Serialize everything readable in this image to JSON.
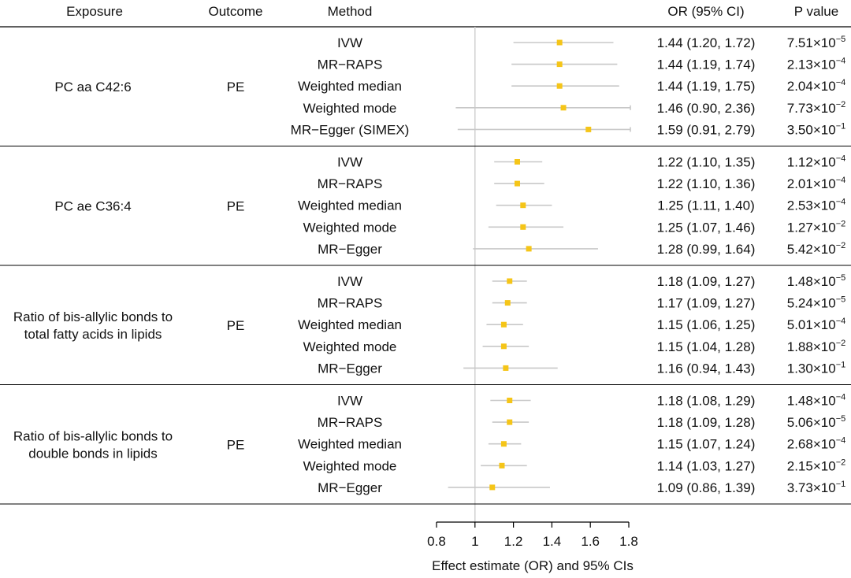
{
  "headers": {
    "exposure": "Exposure",
    "outcome": "Outcome",
    "method": "Method",
    "or_ci": "OR (95% CI)",
    "p_value": "P value"
  },
  "chart_data": {
    "type": "forest",
    "xlabel": "Effect estimate (OR) and 95% CIs",
    "xlim": [
      0.8,
      1.8
    ],
    "ticks": [
      0.8,
      1.0,
      1.2,
      1.4,
      1.6,
      1.8
    ],
    "tick_labels": [
      "0.8",
      "1",
      "1.2",
      "1.4",
      "1.6",
      "1.8"
    ],
    "reference_line": 1.0,
    "colors": {
      "point": "#f5c518",
      "ci_line": "#c8c8c8",
      "reference": "#d0d0d0",
      "border": "#000000"
    },
    "groups": [
      {
        "exposure": [
          "PC aa C42:6"
        ],
        "outcome": "PE",
        "rows": [
          {
            "method": "IVW",
            "or": 1.44,
            "lo": 1.2,
            "hi": 1.72,
            "or_text": "1.44 (1.20, 1.72)",
            "p_mant": "7.51",
            "p_exp": "−5"
          },
          {
            "method": "MR−RAPS",
            "or": 1.44,
            "lo": 1.19,
            "hi": 1.74,
            "or_text": "1.44 (1.19, 1.74)",
            "p_mant": "2.13",
            "p_exp": "−4"
          },
          {
            "method": "Weighted median",
            "or": 1.44,
            "lo": 1.19,
            "hi": 1.75,
            "or_text": "1.44 (1.19, 1.75)",
            "p_mant": "2.04",
            "p_exp": "−4"
          },
          {
            "method": "Weighted mode",
            "or": 1.46,
            "lo": 0.9,
            "hi": 2.36,
            "or_text": "1.46 (0.90, 2.36)",
            "p_mant": "7.73",
            "p_exp": "−2"
          },
          {
            "method": "MR−Egger (SIMEX)",
            "or": 1.59,
            "lo": 0.91,
            "hi": 2.79,
            "or_text": "1.59 (0.91, 2.79)",
            "p_mant": "3.50",
            "p_exp": "−1"
          }
        ]
      },
      {
        "exposure": [
          "PC ae C36:4"
        ],
        "outcome": "PE",
        "rows": [
          {
            "method": "IVW",
            "or": 1.22,
            "lo": 1.1,
            "hi": 1.35,
            "or_text": "1.22 (1.10, 1.35)",
            "p_mant": "1.12",
            "p_exp": "−4"
          },
          {
            "method": "MR−RAPS",
            "or": 1.22,
            "lo": 1.1,
            "hi": 1.36,
            "or_text": "1.22 (1.10, 1.36)",
            "p_mant": "2.01",
            "p_exp": "−4"
          },
          {
            "method": "Weighted median",
            "or": 1.25,
            "lo": 1.11,
            "hi": 1.4,
            "or_text": "1.25 (1.11, 1.40)",
            "p_mant": "2.53",
            "p_exp": "−4"
          },
          {
            "method": "Weighted mode",
            "or": 1.25,
            "lo": 1.07,
            "hi": 1.46,
            "or_text": "1.25 (1.07, 1.46)",
            "p_mant": "1.27",
            "p_exp": "−2"
          },
          {
            "method": "MR−Egger",
            "or": 1.28,
            "lo": 0.99,
            "hi": 1.64,
            "or_text": "1.28 (0.99, 1.64)",
            "p_mant": "5.42",
            "p_exp": "−2"
          }
        ]
      },
      {
        "exposure": [
          "Ratio of bis-allylic bonds to",
          "total fatty acids in lipids"
        ],
        "outcome": "PE",
        "rows": [
          {
            "method": "IVW",
            "or": 1.18,
            "lo": 1.09,
            "hi": 1.27,
            "or_text": "1.18 (1.09, 1.27)",
            "p_mant": "1.48",
            "p_exp": "−5"
          },
          {
            "method": "MR−RAPS",
            "or": 1.17,
            "lo": 1.09,
            "hi": 1.27,
            "or_text": "1.17 (1.09, 1.27)",
            "p_mant": "5.24",
            "p_exp": "−5"
          },
          {
            "method": "Weighted median",
            "or": 1.15,
            "lo": 1.06,
            "hi": 1.25,
            "or_text": "1.15 (1.06, 1.25)",
            "p_mant": "5.01",
            "p_exp": "−4"
          },
          {
            "method": "Weighted mode",
            "or": 1.15,
            "lo": 1.04,
            "hi": 1.28,
            "or_text": "1.15 (1.04, 1.28)",
            "p_mant": "1.88",
            "p_exp": "−2"
          },
          {
            "method": "MR−Egger",
            "or": 1.16,
            "lo": 0.94,
            "hi": 1.43,
            "or_text": "1.16 (0.94, 1.43)",
            "p_mant": "1.30",
            "p_exp": "−1"
          }
        ]
      },
      {
        "exposure": [
          "Ratio of bis-allylic bonds to",
          "double bonds in lipids"
        ],
        "outcome": "PE",
        "rows": [
          {
            "method": "IVW",
            "or": 1.18,
            "lo": 1.08,
            "hi": 1.29,
            "or_text": "1.18 (1.08, 1.29)",
            "p_mant": "1.48",
            "p_exp": "−4"
          },
          {
            "method": "MR−RAPS",
            "or": 1.18,
            "lo": 1.09,
            "hi": 1.28,
            "or_text": "1.18 (1.09, 1.28)",
            "p_mant": "5.06",
            "p_exp": "−5"
          },
          {
            "method": "Weighted median",
            "or": 1.15,
            "lo": 1.07,
            "hi": 1.24,
            "or_text": "1.15 (1.07, 1.24)",
            "p_mant": "2.68",
            "p_exp": "−4"
          },
          {
            "method": "Weighted mode",
            "or": 1.14,
            "lo": 1.03,
            "hi": 1.27,
            "or_text": "1.14 (1.03, 1.27)",
            "p_mant": "2.15",
            "p_exp": "−2"
          },
          {
            "method": "MR−Egger",
            "or": 1.09,
            "lo": 0.86,
            "hi": 1.39,
            "or_text": "1.09 (0.86, 1.39)",
            "p_mant": "3.73",
            "p_exp": "−1"
          }
        ]
      }
    ]
  }
}
